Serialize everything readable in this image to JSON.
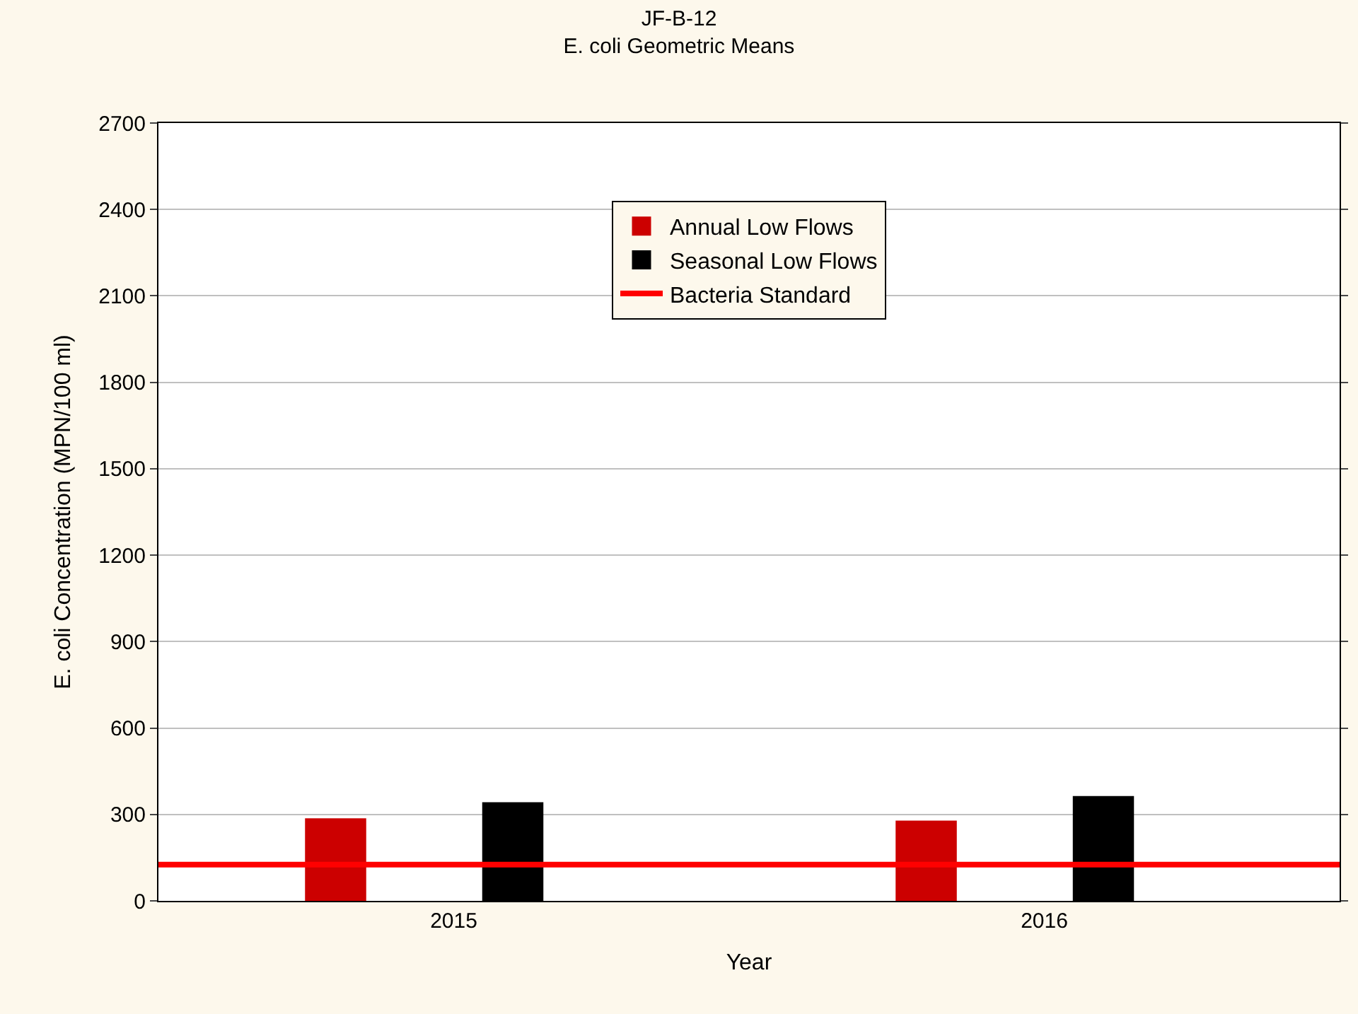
{
  "chart_data": {
    "type": "bar",
    "title": "JF-B-12",
    "subtitle": "E. coli Geometric Means",
    "xlabel": "Year",
    "ylabel": "E. coli Concentration (MPN/100 ml)",
    "categories": [
      "2015",
      "2016"
    ],
    "series": [
      {
        "name": "Annual Low Flows",
        "color": "#cc0000",
        "values": [
          283,
          275
        ]
      },
      {
        "name": "Seasonal Low Flows",
        "color": "#000000",
        "values": [
          339,
          360
        ]
      }
    ],
    "ref_lines": [
      {
        "axis": "y",
        "value": 126,
        "label": "Bacteria Standard",
        "color": "#ff0000"
      }
    ],
    "ylim": [
      0,
      2700
    ],
    "yticks": [
      0,
      300,
      600,
      900,
      1200,
      1500,
      1800,
      2100,
      2400,
      2700
    ],
    "grid": "y",
    "legend": "top"
  }
}
